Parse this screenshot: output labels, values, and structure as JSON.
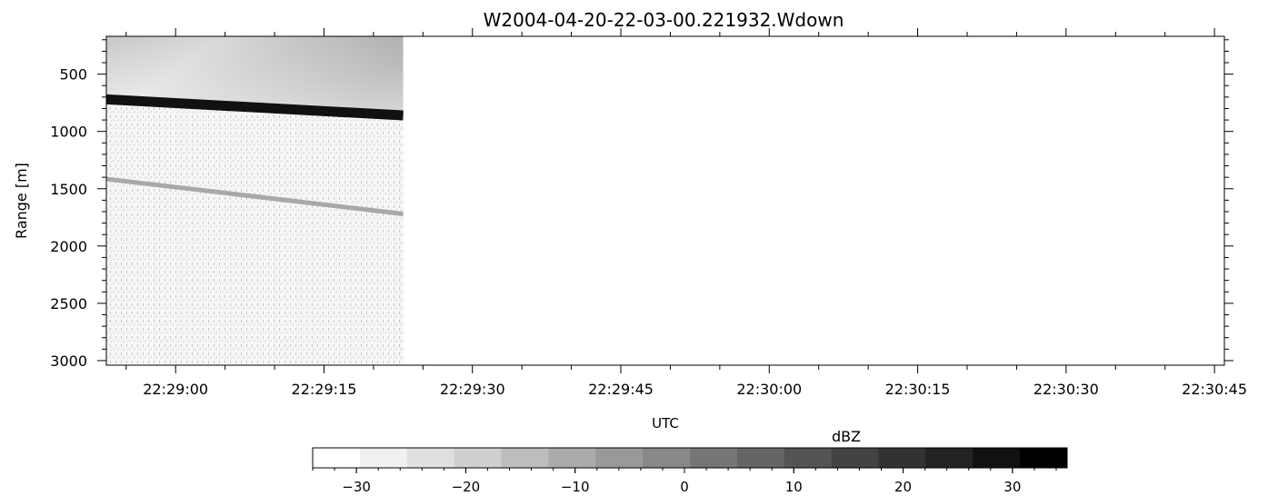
{
  "chart_data": {
    "type": "heatmap",
    "title": "W2004-04-20-22-03-00.221932.Wdown",
    "xlabel": "UTC",
    "ylabel": "Range [m]",
    "x_ticks": [
      "22:29:00",
      "22:29:15",
      "22:29:30",
      "22:29:45",
      "22:30:00",
      "22:30:15",
      "22:30:30",
      "22:30:45"
    ],
    "y_ticks": [
      "500",
      "1000",
      "1500",
      "2000",
      "2500",
      "3000"
    ],
    "y_tick_values": [
      500,
      1000,
      1500,
      2000,
      2500,
      3000
    ],
    "x_range_seconds": [
      "22:28:53",
      "22:30:46"
    ],
    "y_range_m": [
      170,
      3040
    ],
    "y_inverted": true,
    "data_end_time": "22:29:23",
    "features": [
      {
        "name": "strong echo layer",
        "start_time": "22:28:53",
        "end_time": "22:29:23",
        "range_start_m": 720,
        "range_end_m": 860,
        "dbz": 33
      },
      {
        "name": "weak echo layer",
        "start_time": "22:28:53",
        "end_time": "22:29:23",
        "range_start_m": 1415,
        "range_end_m": 1720,
        "dbz": -5
      }
    ],
    "colorbar": {
      "label": "dBZ",
      "min": -34,
      "max": 35,
      "ticks": [
        "-30",
        "-20",
        "-10",
        "0",
        "10",
        "20",
        "30"
      ],
      "tick_values": [
        -30,
        -20,
        -10,
        0,
        10,
        20,
        30
      ],
      "colors": [
        "#ffffff",
        "#f0f0f0",
        "#e0e0e0",
        "#cfcfcf",
        "#bdbdbd",
        "#ababab",
        "#999999",
        "#888888",
        "#767676",
        "#656565",
        "#545454",
        "#434343",
        "#323232",
        "#222222",
        "#111111",
        "#000000"
      ]
    }
  }
}
